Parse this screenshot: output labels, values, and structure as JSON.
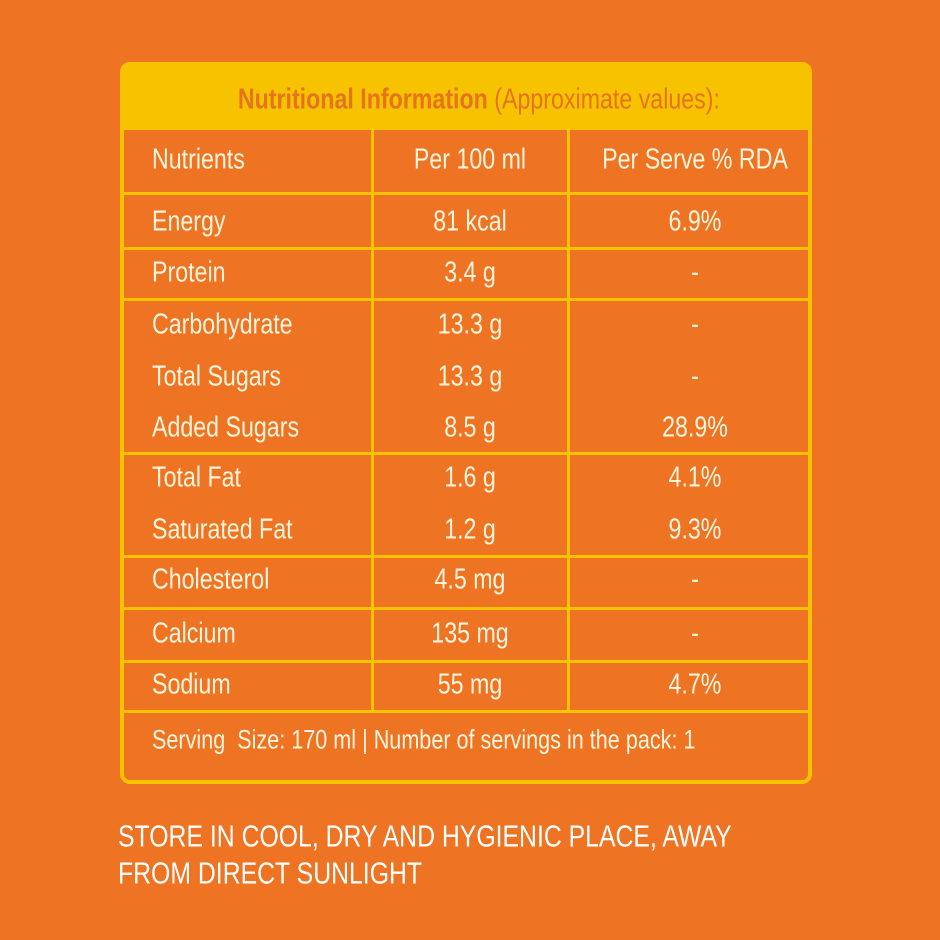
{
  "header": {
    "title": "Nutritional Information",
    "subtitle": "(Approximate values):"
  },
  "table": {
    "columns": [
      "Nutrients",
      "Per 100 ml",
      "Per Serve % RDA"
    ],
    "rows": [
      [
        "Energy",
        "81 kcal",
        "6.9%"
      ],
      [
        "Protein",
        "3.4 g",
        "-"
      ],
      [
        "Carbohydrate",
        "13.3 g",
        "-"
      ],
      [
        "Total Sugars",
        "13.3 g",
        "-"
      ],
      [
        "Added Sugars",
        "8.5 g",
        "28.9%"
      ],
      [
        "Total Fat",
        "1.6 g",
        "4.1%"
      ],
      [
        "Saturated Fat",
        "1.2 g",
        "9.3%"
      ],
      [
        "Cholesterol",
        "4.5 mg",
        "-"
      ],
      [
        "Calcium",
        "135 mg",
        "-"
      ],
      [
        "Sodium",
        "55 mg",
        "4.7%"
      ]
    ],
    "footer": "Serving  Size: 170 ml | Number of servings in the pack: 1"
  },
  "storage": {
    "lines": [
      "STORE IN COOL, DRY AND HYGIENIC PLACE, AWAY",
      "FROM DIRECT SUNLIGHT"
    ]
  }
}
